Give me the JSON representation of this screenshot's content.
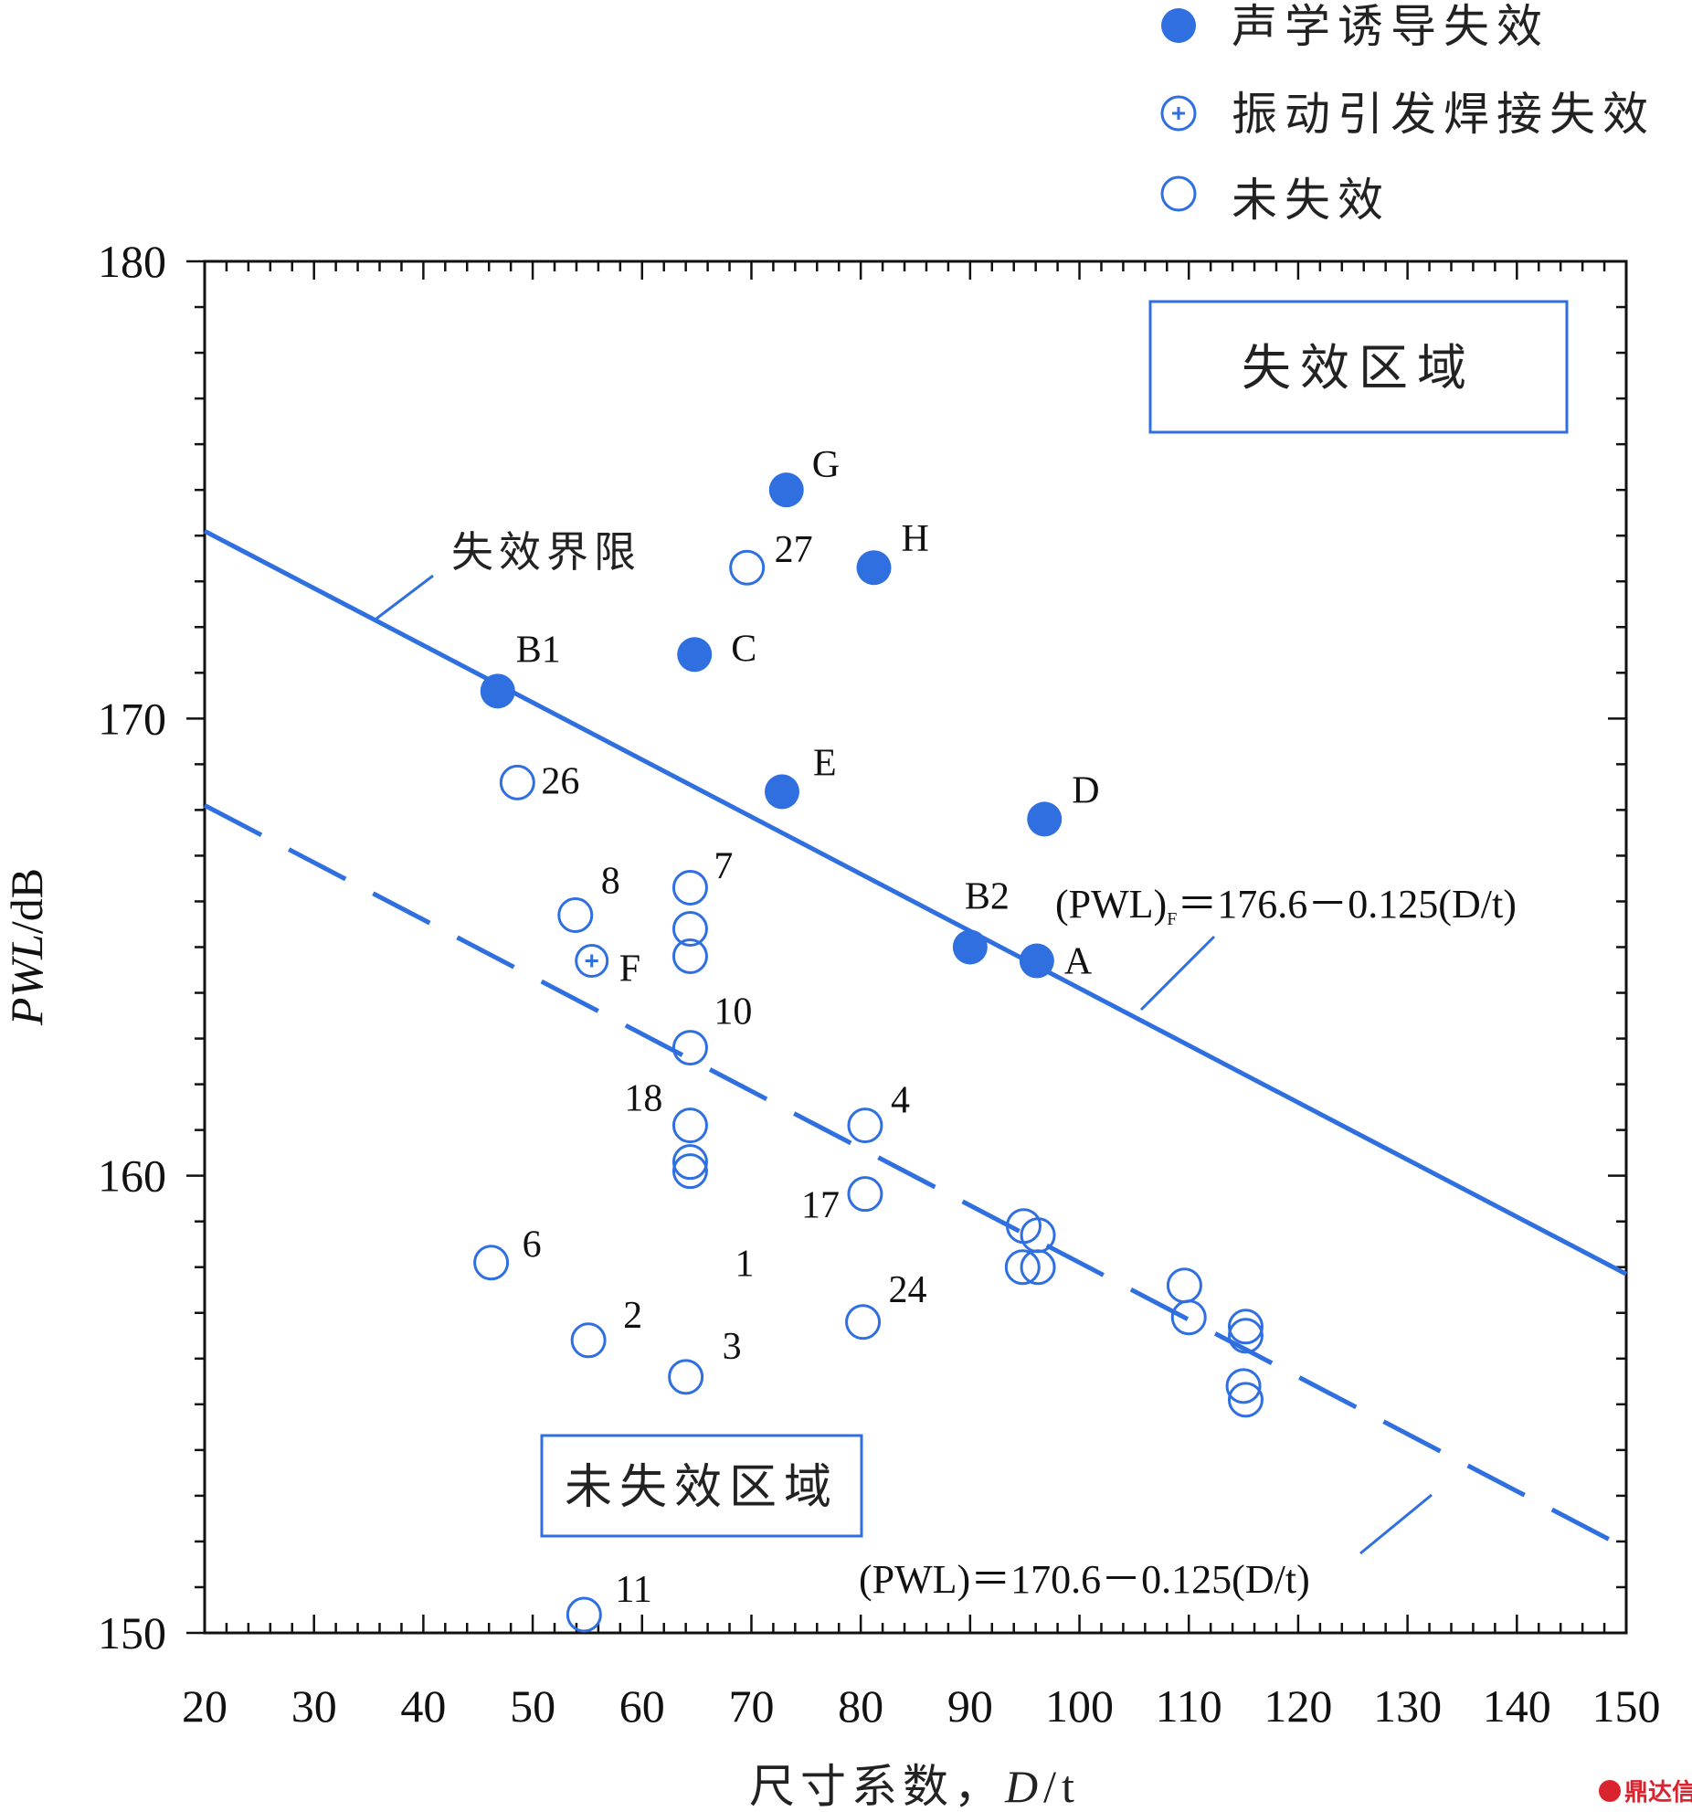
{
  "chart_data": {
    "type": "scatter",
    "xlabel_cn": "尺寸系数，",
    "xlabel_var": "D",
    "xlabel_unit": "/t",
    "ylabel_var": "PWL",
    "ylabel_unit": "/dB",
    "xlim": [
      20,
      150
    ],
    "ylim": [
      150,
      180
    ],
    "x_ticks": [
      "20",
      "30",
      "40",
      "50",
      "60",
      "70",
      "80",
      "90",
      "100",
      "110",
      "120",
      "130",
      "140",
      "150"
    ],
    "y_ticks": [
      "150",
      "160",
      "170",
      "180"
    ],
    "legend": {
      "position": "top-right",
      "items": [
        {
          "label": "声学诱导失效",
          "marker": "filled-circle"
        },
        {
          "label": "振动引发焊接失效",
          "marker": "plus-circle"
        },
        {
          "label": "未失效",
          "marker": "open-circle"
        }
      ]
    },
    "series": [
      {
        "name": "声学诱导失效",
        "marker": "filled-circle",
        "points": [
          {
            "x": 73.2,
            "y": 175.0,
            "label": "G"
          },
          {
            "x": 81.2,
            "y": 173.3,
            "label": "H"
          },
          {
            "x": 64.8,
            "y": 171.4,
            "label": "C"
          },
          {
            "x": 46.8,
            "y": 170.6,
            "label": "B1"
          },
          {
            "x": 72.8,
            "y": 168.4,
            "label": "E"
          },
          {
            "x": 96.8,
            "y": 167.8,
            "label": "D"
          },
          {
            "x": 90.0,
            "y": 165.0,
            "label": "B2"
          },
          {
            "x": 96.1,
            "y": 164.7,
            "label": "A"
          }
        ]
      },
      {
        "name": "振动引发焊接失效",
        "marker": "plus-circle",
        "points": [
          {
            "x": 55.4,
            "y": 164.7,
            "label": "F"
          }
        ]
      },
      {
        "name": "未失效",
        "marker": "open-circle",
        "points": [
          {
            "x": 69.6,
            "y": 173.3,
            "label": "27"
          },
          {
            "x": 48.6,
            "y": 168.6,
            "label": "26"
          },
          {
            "x": 53.9,
            "y": 165.7,
            "label": "8"
          },
          {
            "x": 64.4,
            "y": 166.3,
            "label": "7"
          },
          {
            "x": 64.4,
            "y": 165.4,
            "label": ""
          },
          {
            "x": 64.4,
            "y": 164.8,
            "label": ""
          },
          {
            "x": 64.4,
            "y": 162.8,
            "label": "10"
          },
          {
            "x": 64.4,
            "y": 161.1,
            "label": "18"
          },
          {
            "x": 64.4,
            "y": 160.3,
            "label": ""
          },
          {
            "x": 64.4,
            "y": 160.1,
            "label": ""
          },
          {
            "x": 80.4,
            "y": 161.1,
            "label": "4"
          },
          {
            "x": 80.4,
            "y": 159.6,
            "label": "17"
          },
          {
            "x": 46.2,
            "y": 158.1,
            "label": "6"
          },
          {
            "x": 55.1,
            "y": 156.4,
            "label": "2"
          },
          {
            "x": 64.0,
            "y": 155.6,
            "label": "3"
          },
          {
            "x": 80.2,
            "y": 156.8,
            "label": "24"
          },
          {
            "x": 54.7,
            "y": 150.4,
            "label": "11"
          },
          {
            "x": 94.9,
            "y": 158.9,
            "label": ""
          },
          {
            "x": 96.2,
            "y": 158.7,
            "label": ""
          },
          {
            "x": 94.8,
            "y": 158.0,
            "label": ""
          },
          {
            "x": 96.2,
            "y": 158.0,
            "label": ""
          },
          {
            "x": 109.6,
            "y": 157.6,
            "label": ""
          },
          {
            "x": 110.0,
            "y": 156.9,
            "label": ""
          },
          {
            "x": 115.2,
            "y": 156.7,
            "label": ""
          },
          {
            "x": 115.2,
            "y": 156.5,
            "label": ""
          },
          {
            "x": 115.0,
            "y": 155.4,
            "label": ""
          },
          {
            "x": 115.2,
            "y": 155.1,
            "label": ""
          }
        ]
      }
    ],
    "floating_labels": [
      {
        "text": "1",
        "x": 68.5,
        "y": 157.8
      }
    ],
    "lines": [
      {
        "name": "失效界限",
        "style": "solid",
        "intercept": 176.6,
        "slope": -0.125,
        "eq_left": "(PWL)",
        "eq_sub": "F",
        "eq_right": "＝176.6－0.125(D/t)"
      },
      {
        "name": "",
        "style": "dashed",
        "intercept": 170.6,
        "slope": -0.125,
        "eq_left": "(PWL)",
        "eq_sub": "",
        "eq_right": "＝170.6－0.125(D/t)"
      }
    ],
    "annotations": {
      "failure_boundary": "失效界限",
      "failure_region": "失效区域",
      "nonfailure_region": "未失效区域"
    },
    "accent_color": "#2f6fe0",
    "watermark": "鼎达信"
  }
}
